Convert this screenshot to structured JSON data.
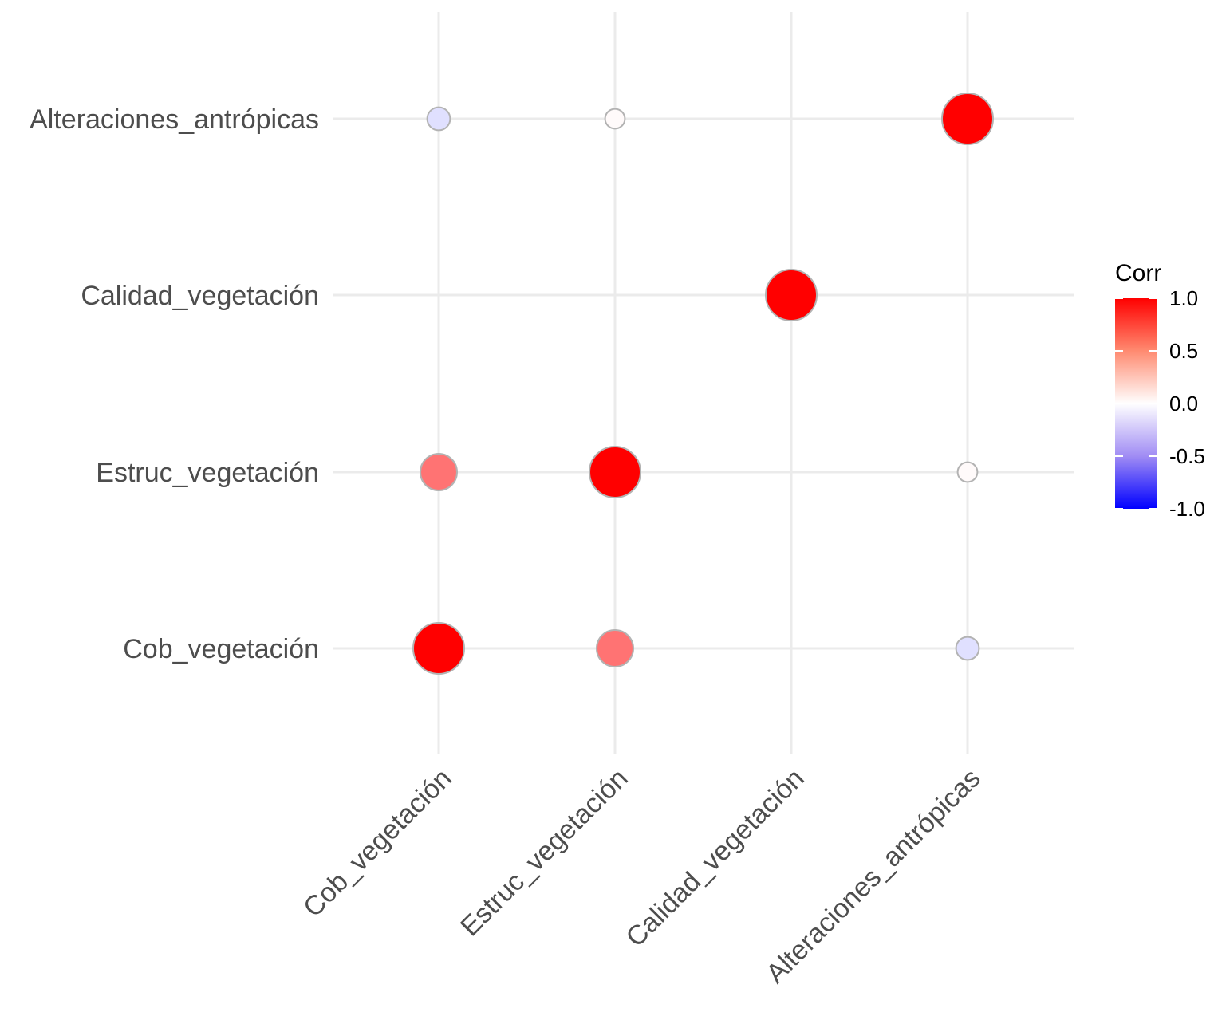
{
  "chart_data": {
    "type": "scatter",
    "subtype": "correlation-matrix-bubble",
    "title": "",
    "xlabel": "",
    "ylabel": "",
    "x_categories": [
      "Cob_vegetación",
      "Estruc_vegetación",
      "Calidad_vegetación",
      "Alteraciones_antrópicas"
    ],
    "y_categories": [
      "Cob_vegetación",
      "Estruc_vegetación",
      "Calidad_vegetación",
      "Alteraciones_antrópicas"
    ],
    "points": [
      {
        "x": "Cob_vegetación",
        "y": "Cob_vegetación",
        "corr": 1.0
      },
      {
        "x": "Estruc_vegetación",
        "y": "Cob_vegetación",
        "corr": 0.55
      },
      {
        "x": "Alteraciones_antrópicas",
        "y": "Cob_vegetación",
        "corr": -0.12
      },
      {
        "x": "Cob_vegetación",
        "y": "Estruc_vegetación",
        "corr": 0.55
      },
      {
        "x": "Estruc_vegetación",
        "y": "Estruc_vegetación",
        "corr": 1.0
      },
      {
        "x": "Alteraciones_antrópicas",
        "y": "Estruc_vegetación",
        "corr": 0.02
      },
      {
        "x": "Calidad_vegetación",
        "y": "Calidad_vegetación",
        "corr": 1.0
      },
      {
        "x": "Cob_vegetación",
        "y": "Alteraciones_antrópicas",
        "corr": -0.12
      },
      {
        "x": "Estruc_vegetación",
        "y": "Alteraciones_antrópicas",
        "corr": 0.02
      },
      {
        "x": "Alteraciones_antrópicas",
        "y": "Alteraciones_antrópicas",
        "corr": 1.0
      }
    ],
    "legend": {
      "title": "Corr",
      "position": "right",
      "range": [
        -1.0,
        1.0
      ],
      "ticks": [
        "1.0",
        "0.5",
        "0.0",
        "-0.5",
        "-1.0"
      ],
      "tick_values": [
        1.0,
        0.5,
        0.0,
        -0.5,
        -1.0
      ],
      "colors": {
        "low": "#0000ff",
        "mid": "#ffffff",
        "high": "#ff0000"
      }
    },
    "grid": true
  }
}
